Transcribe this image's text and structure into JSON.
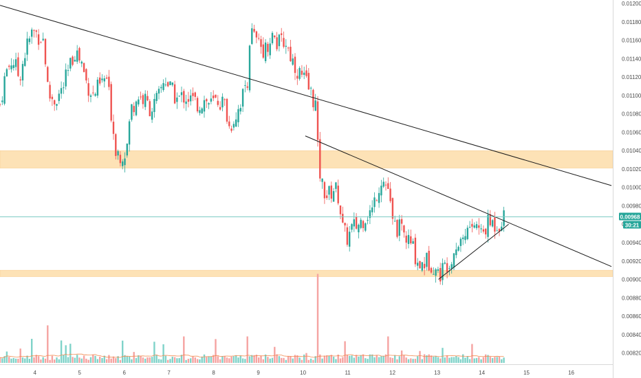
{
  "colors": {
    "up": "#26a69a",
    "down": "#ef5350",
    "up_volume": "#7fd3c9",
    "down_volume": "#f5a3a1",
    "zone": "#fde2b6",
    "zone_edge": "#f8c98a",
    "trendline": "#1a1a1a",
    "price_line": "#7ccbc4",
    "price_tag": "#26a69a",
    "axis_text": "#4a4a4a",
    "volume_ma": "#f28b50"
  },
  "price_tag": {
    "price": "0.00968",
    "timer": "30:21"
  },
  "chart_data": {
    "type": "candlestick",
    "title": "",
    "x_ticks": [
      "4",
      "5",
      "6",
      "7",
      "8",
      "9",
      "10",
      "11",
      "12",
      "13",
      "14",
      "15",
      "16"
    ],
    "y_ticks": [
      "0.01200",
      "0.01180",
      "0.01160",
      "0.01140",
      "0.01120",
      "0.01100",
      "0.01080",
      "0.01060",
      "0.01040",
      "0.01020",
      "0.01000",
      "0.00980",
      "0.00960",
      "0.00940",
      "0.00920",
      "0.00900",
      "0.00880",
      "0.00860",
      "0.00840",
      "0.00820"
    ],
    "ylim": [
      0.0081,
      0.012
    ],
    "xlim": [
      3.22,
      16.93
    ],
    "current_price": 0.00968,
    "zones": [
      {
        "from": 0.01021,
        "to": 0.0104
      },
      {
        "from": 0.00903,
        "to": 0.0091
      }
    ],
    "trendlines": [
      {
        "x1": 3.22,
        "y1": 0.01198,
        "x2": 16.9,
        "y2": 0.01002
      },
      {
        "x1": 10.05,
        "y1": 0.01056,
        "x2": 16.9,
        "y2": 0.00914
      },
      {
        "x1": 13.03,
        "y1": 0.009,
        "x2": 14.6,
        "y2": 0.0096
      }
    ],
    "price_anchors": [
      [
        3.22,
        0.0109
      ],
      [
        3.35,
        0.01125
      ],
      [
        3.5,
        0.0114
      ],
      [
        3.65,
        0.0112
      ],
      [
        3.8,
        0.0115
      ],
      [
        3.95,
        0.0117
      ],
      [
        4.1,
        0.01165
      ],
      [
        4.2,
        0.0116
      ],
      [
        4.3,
        0.011
      ],
      [
        4.45,
        0.01095
      ],
      [
        4.6,
        0.01105
      ],
      [
        4.75,
        0.01125
      ],
      [
        4.9,
        0.0115
      ],
      [
        5.05,
        0.01135
      ],
      [
        5.15,
        0.01115
      ],
      [
        5.3,
        0.011
      ],
      [
        5.45,
        0.0111
      ],
      [
        5.6,
        0.0112
      ],
      [
        5.7,
        0.01085
      ],
      [
        5.8,
        0.01045
      ],
      [
        5.9,
        0.01035
      ],
      [
        6.05,
        0.0104
      ],
      [
        6.15,
        0.01085
      ],
      [
        6.3,
        0.011
      ],
      [
        6.45,
        0.01095
      ],
      [
        6.6,
        0.01085
      ],
      [
        6.75,
        0.01095
      ],
      [
        6.9,
        0.0112
      ],
      [
        7.05,
        0.01105
      ],
      [
        7.2,
        0.01095
      ],
      [
        7.35,
        0.011
      ],
      [
        7.5,
        0.01095
      ],
      [
        7.65,
        0.0109
      ],
      [
        7.8,
        0.01095
      ],
      [
        7.95,
        0.0109
      ],
      [
        8.1,
        0.01095
      ],
      [
        8.25,
        0.0109
      ],
      [
        8.35,
        0.01065
      ],
      [
        8.5,
        0.0108
      ],
      [
        8.65,
        0.011
      ],
      [
        8.75,
        0.01115
      ],
      [
        8.82,
        0.0117
      ],
      [
        9.0,
        0.01155
      ],
      [
        9.15,
        0.0115
      ],
      [
        9.3,
        0.01165
      ],
      [
        9.45,
        0.01155
      ],
      [
        9.6,
        0.0116
      ],
      [
        9.75,
        0.0114
      ],
      [
        9.9,
        0.01125
      ],
      [
        10.05,
        0.01115
      ],
      [
        10.2,
        0.011
      ],
      [
        10.28,
        0.0109
      ],
      [
        10.33,
        0.0104
      ],
      [
        10.4,
        0.01005
      ],
      [
        10.55,
        0.0099
      ],
      [
        10.7,
        0.01
      ],
      [
        10.8,
        0.0099
      ],
      [
        10.9,
        0.0095
      ],
      [
        11.0,
        0.00945
      ],
      [
        11.1,
        0.00955
      ],
      [
        11.25,
        0.0096
      ],
      [
        11.4,
        0.0097
      ],
      [
        11.55,
        0.00975
      ],
      [
        11.65,
        0.00995
      ],
      [
        11.75,
        0.0101
      ],
      [
        11.9,
        0.01
      ],
      [
        12.0,
        0.0096
      ],
      [
        12.15,
        0.00955
      ],
      [
        12.3,
        0.00945
      ],
      [
        12.45,
        0.00935
      ],
      [
        12.6,
        0.00915
      ],
      [
        12.75,
        0.0092
      ],
      [
        12.9,
        0.00918
      ],
      [
        13.03,
        0.00905
      ],
      [
        13.15,
        0.00912
      ],
      [
        13.3,
        0.00925
      ],
      [
        13.45,
        0.0094
      ],
      [
        13.6,
        0.00948
      ],
      [
        13.7,
        0.00955
      ],
      [
        13.8,
        0.0096
      ],
      [
        13.9,
        0.00958
      ],
      [
        14.0,
        0.00948
      ],
      [
        14.1,
        0.00958
      ],
      [
        14.2,
        0.00962
      ],
      [
        14.3,
        0.0096
      ],
      [
        14.4,
        0.00962
      ],
      [
        14.5,
        0.00968
      ]
    ],
    "volume_spikes": [
      {
        "x": 4.27,
        "volume": 0.78
      },
      {
        "x": 10.33,
        "volume": 1.0
      },
      {
        "x": 8.75,
        "volume": 0.55
      },
      {
        "x": 7.35,
        "volume": 0.55
      },
      {
        "x": 11.9,
        "volume": 0.55
      },
      {
        "x": 10.95,
        "volume": 0.45
      },
      {
        "x": 3.95,
        "volume": 0.5
      }
    ]
  }
}
